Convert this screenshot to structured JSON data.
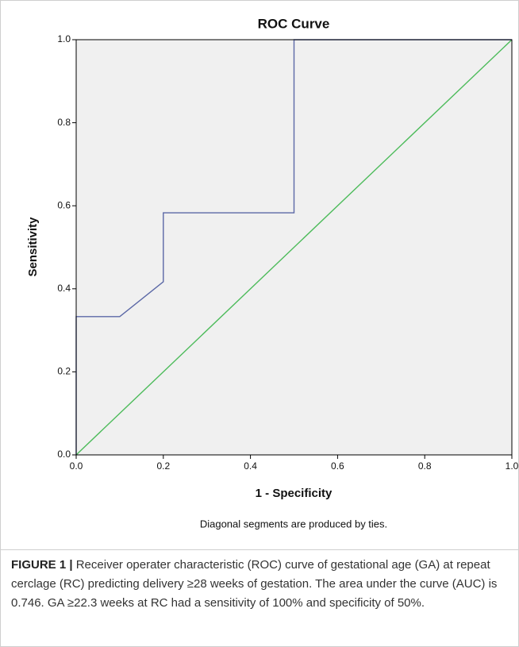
{
  "chart_data": {
    "type": "line",
    "title": "ROC Curve",
    "x_label": "1 - Specificity",
    "y_label": "Sensitivity",
    "annotation": "Diagonal segments are produced by ties.",
    "series": [
      {
        "color": "#5b68a6",
        "x": [
          0,
          0,
          0.1,
          0.2,
          0.2,
          0.5,
          0.5,
          1
        ],
        "values": [
          0,
          0.333,
          0.333,
          0.417,
          0.583,
          0.583,
          1,
          1
        ]
      },
      {
        "color": "#4cbb5a",
        "x": [
          0,
          1
        ],
        "values": [
          0,
          1
        ]
      }
    ],
    "xlim": [
      0,
      1
    ],
    "ylim": [
      0,
      1
    ],
    "xticks": [
      {
        "value": 0,
        "label": "0.0"
      },
      0.2,
      0.4,
      0.6,
      0.8,
      {
        "value": 1,
        "label": "1.0"
      }
    ],
    "yticks": [
      {
        "value": 0,
        "label": "0.0"
      },
      0.2,
      0.4,
      0.6,
      0.8,
      {
        "value": 1,
        "label": "1.0"
      }
    ],
    "grid": false,
    "background": "#f0f0f0"
  },
  "caption": {
    "label": "FIGURE 1 |",
    "text": "Receiver operater characteristic (ROC) curve of gestational age (GA) at repeat cerclage (RC) predicting delivery ≥28 weeks of gestation. The area under the curve (AUC) is 0.746. GA ≥22.3 weeks at RC had a sensitivity of 100% and specificity of 50%."
  }
}
